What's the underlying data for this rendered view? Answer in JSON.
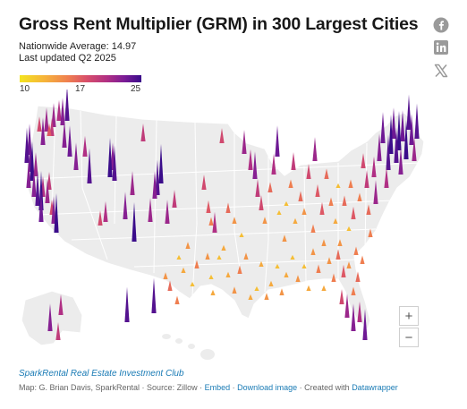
{
  "header": {
    "title": "Gross Rent Multiplier (GRM) in 300 Largest Cities",
    "average": "Nationwide Average: 14.97",
    "updated": "Last updated Q2 2025"
  },
  "legend": {
    "min_label": "10",
    "mid_label": "17",
    "max_label": "25",
    "colors": [
      "#f3e41f",
      "#f6b43a",
      "#ef7e50",
      "#d84f6a",
      "#b02f84",
      "#7b1c96",
      "#3a0c8a"
    ]
  },
  "social": [
    "facebook-icon",
    "linkedin-icon",
    "x-icon"
  ],
  "zoom": {
    "in_label": "+",
    "out_label": "−"
  },
  "footer": {
    "source_name": "SparkRental Real Estate Investment Club",
    "credit": "Map: G. Brian Davis, SparkRental · Source: Zillow · ",
    "embed": "Embed",
    "sep1": " · ",
    "download": "Download image",
    "sep2": " · Created with ",
    "datawrapper": "Datawrapper"
  },
  "map_data": {
    "grm_range": [
      10,
      25
    ],
    "cities": [
      [
        75,
        35,
        24
      ],
      [
        70,
        40,
        22
      ],
      [
        66,
        35,
        20
      ],
      [
        60,
        42,
        21
      ],
      [
        58,
        52,
        19
      ],
      [
        52,
        47,
        21
      ],
      [
        48,
        62,
        22
      ],
      [
        44,
        47,
        18
      ],
      [
        55,
        52,
        17
      ],
      [
        33,
        73,
        23
      ],
      [
        30,
        82,
        24
      ],
      [
        34,
        92,
        23
      ],
      [
        36,
        102,
        25
      ],
      [
        32,
        110,
        22
      ],
      [
        40,
        97,
        21
      ],
      [
        38,
        120,
        22
      ],
      [
        42,
        130,
        24
      ],
      [
        46,
        135,
        25
      ],
      [
        48,
        120,
        20
      ],
      [
        53,
        127,
        21
      ],
      [
        58,
        140,
        18
      ],
      [
        60,
        150,
        22
      ],
      [
        63,
        160,
        25
      ],
      [
        46,
        148,
        23
      ],
      [
        55,
        112,
        19
      ],
      [
        72,
        65,
        22
      ],
      [
        78,
        75,
        23
      ],
      [
        85,
        90,
        22
      ],
      [
        95,
        75,
        20
      ],
      [
        100,
        105,
        24
      ],
      [
        112,
        152,
        18
      ],
      [
        118,
        148,
        20
      ],
      [
        123,
        98,
        25
      ],
      [
        128,
        102,
        24
      ],
      [
        126,
        90,
        22
      ],
      [
        148,
        118,
        21
      ],
      [
        140,
        145,
        22
      ],
      [
        150,
        170,
        25
      ],
      [
        160,
        58,
        19
      ],
      [
        168,
        148,
        21
      ],
      [
        172,
        250,
        24
      ],
      [
        180,
        105,
        25
      ],
      [
        176,
        118,
        24
      ],
      [
        187,
        150,
        21
      ],
      [
        195,
        132,
        19
      ],
      [
        173,
        122,
        22
      ],
      [
        68,
        252,
        20
      ],
      [
        56,
        270,
        22
      ],
      [
        65,
        280,
        19
      ],
      [
        142,
        260,
        24
      ],
      [
        228,
        112,
        18
      ],
      [
        233,
        138,
        17
      ],
      [
        236,
        152,
        15
      ],
      [
        248,
        60,
        18
      ],
      [
        255,
        138,
        16
      ],
      [
        262,
        150,
        14
      ],
      [
        270,
        165,
        12
      ],
      [
        273,
        72,
        21
      ],
      [
        280,
        90,
        20
      ],
      [
        285,
        100,
        22
      ],
      [
        288,
        120,
        19
      ],
      [
        292,
        135,
        18
      ],
      [
        296,
        150,
        14
      ],
      [
        302,
        115,
        16
      ],
      [
        306,
        95,
        20
      ],
      [
        310,
        75,
        23
      ],
      [
        312,
        140,
        12
      ],
      [
        318,
        170,
        14
      ],
      [
        320,
        130,
        12
      ],
      [
        325,
        110,
        15
      ],
      [
        328,
        90,
        19
      ],
      [
        330,
        150,
        13
      ],
      [
        336,
        125,
        16
      ],
      [
        340,
        140,
        14
      ],
      [
        345,
        100,
        18
      ],
      [
        350,
        160,
        15
      ],
      [
        352,
        80,
        21
      ],
      [
        355,
        120,
        17
      ],
      [
        360,
        140,
        17
      ],
      [
        362,
        175,
        14
      ],
      [
        365,
        100,
        16
      ],
      [
        370,
        130,
        15
      ],
      [
        375,
        150,
        13
      ],
      [
        378,
        110,
        12
      ],
      [
        380,
        175,
        14
      ],
      [
        385,
        130,
        16
      ],
      [
        390,
        158,
        12
      ],
      [
        392,
        110,
        15
      ],
      [
        395,
        145,
        17
      ],
      [
        398,
        185,
        15
      ],
      [
        402,
        125,
        15
      ],
      [
        406,
        88,
        18
      ],
      [
        410,
        110,
        19
      ],
      [
        412,
        140,
        16
      ],
      [
        414,
        165,
        15
      ],
      [
        418,
        98,
        20
      ],
      [
        420,
        128,
        21
      ],
      [
        424,
        80,
        22
      ],
      [
        428,
        60,
        23
      ],
      [
        432,
        110,
        20
      ],
      [
        434,
        90,
        24
      ],
      [
        437,
        72,
        25
      ],
      [
        440,
        55,
        23
      ],
      [
        443,
        82,
        24
      ],
      [
        446,
        68,
        25
      ],
      [
        448,
        95,
        22
      ],
      [
        450,
        58,
        23
      ],
      [
        454,
        78,
        25
      ],
      [
        457,
        45,
        24
      ],
      [
        460,
        62,
        23
      ],
      [
        463,
        80,
        21
      ],
      [
        466,
        55,
        24
      ],
      [
        240,
        160,
        20
      ],
      [
        245,
        190,
        12
      ],
      [
        250,
        180,
        13
      ],
      [
        255,
        210,
        13
      ],
      [
        262,
        228,
        14
      ],
      [
        268,
        206,
        15
      ],
      [
        275,
        190,
        14
      ],
      [
        280,
        235,
        13
      ],
      [
        287,
        225,
        12
      ],
      [
        292,
        198,
        13
      ],
      [
        298,
        235,
        14
      ],
      [
        303,
        220,
        13
      ],
      [
        310,
        200,
        12
      ],
      [
        315,
        230,
        14
      ],
      [
        320,
        210,
        13
      ],
      [
        327,
        190,
        12
      ],
      [
        333,
        215,
        14
      ],
      [
        340,
        200,
        12
      ],
      [
        345,
        225,
        13
      ],
      [
        350,
        185,
        14
      ],
      [
        356,
        205,
        15
      ],
      [
        362,
        225,
        13
      ],
      [
        368,
        195,
        14
      ],
      [
        373,
        215,
        15
      ],
      [
        378,
        190,
        16
      ],
      [
        384,
        210,
        17
      ],
      [
        390,
        200,
        14
      ],
      [
        395,
        230,
        15
      ],
      [
        400,
        215,
        16
      ],
      [
        405,
        195,
        15
      ],
      [
        382,
        240,
        18
      ],
      [
        388,
        255,
        21
      ],
      [
        395,
        270,
        22
      ],
      [
        402,
        260,
        20
      ],
      [
        408,
        280,
        23
      ],
      [
        200,
        190,
        12
      ],
      [
        205,
        205,
        13
      ],
      [
        210,
        178,
        14
      ],
      [
        215,
        220,
        12
      ],
      [
        220,
        200,
        15
      ],
      [
        232,
        190,
        14
      ],
      [
        238,
        230,
        13
      ],
      [
        198,
        240,
        15
      ],
      [
        185,
        212,
        14
      ],
      [
        190,
        225,
        16
      ],
      [
        236,
        212,
        12
      ]
    ]
  }
}
